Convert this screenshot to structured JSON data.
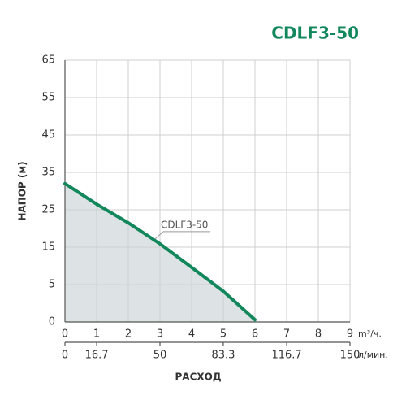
{
  "chart_data": {
    "type": "line",
    "title": "CDLF3-50",
    "ylabel": "НАПОР (м)",
    "xlabel": "РАСХОД",
    "x_unit": "m³/ч.",
    "x2_unit": "л/мин.",
    "x": [
      0,
      1,
      2,
      3,
      4,
      5,
      6
    ],
    "series": [
      {
        "name": "CDLF3-50",
        "color": "#13875c",
        "fill": "#dde3e5",
        "values": [
          32,
          26.5,
          21.5,
          15.9,
          9.6,
          4.1,
          0.3
        ]
      }
    ],
    "xlim": [
      0,
      9
    ],
    "xticks": [
      0,
      1,
      2,
      3,
      4,
      5,
      6,
      7,
      8,
      9
    ],
    "x2lim": [
      0,
      150
    ],
    "x2ticks": [
      0,
      16.7,
      50,
      83.3,
      116.7,
      150
    ],
    "ylim": [
      0,
      65
    ],
    "yticks": [
      0,
      5,
      15,
      25,
      35,
      45,
      55,
      65
    ],
    "grid": true
  }
}
